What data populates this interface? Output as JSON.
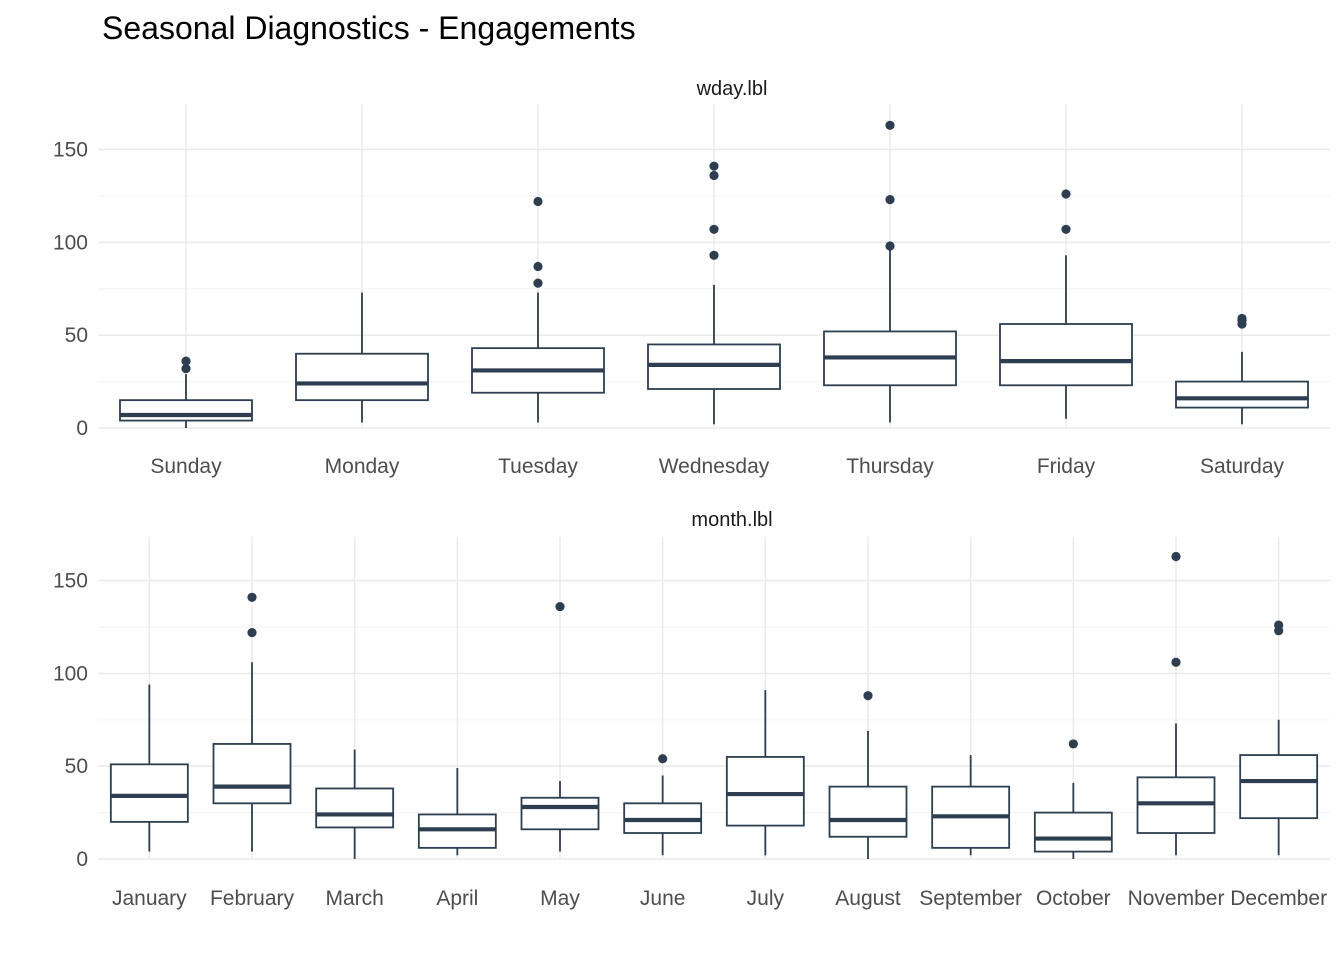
{
  "title": "Seasonal Diagnostics - Engagements",
  "colors": {
    "box": "#2c3e50",
    "grid_major": "#ebebeb",
    "grid_minor": "#f5f5f5",
    "tick_text": "#4d4d4d",
    "background": "#ffffff"
  },
  "chart_data": [
    {
      "type": "box",
      "panel": "wday.lbl",
      "ylim": [
        0,
        170
      ],
      "yticks": [
        0,
        50,
        100,
        150
      ],
      "categories": [
        "Sunday",
        "Monday",
        "Tuesday",
        "Wednesday",
        "Thursday",
        "Friday",
        "Saturday"
      ],
      "boxes": [
        {
          "whisker_low": 0,
          "q1": 4,
          "median": 7,
          "q3": 15,
          "whisker_high": 29,
          "outliers": [
            32,
            36
          ]
        },
        {
          "whisker_low": 3,
          "q1": 15,
          "median": 24,
          "q3": 40,
          "whisker_high": 73,
          "outliers": []
        },
        {
          "whisker_low": 3,
          "q1": 19,
          "median": 31,
          "q3": 43,
          "whisker_high": 73,
          "outliers": [
            78,
            87,
            122
          ]
        },
        {
          "whisker_low": 2,
          "q1": 21,
          "median": 34,
          "q3": 45,
          "whisker_high": 77,
          "outliers": [
            93,
            107,
            136,
            141
          ]
        },
        {
          "whisker_low": 3,
          "q1": 23,
          "median": 38,
          "q3": 52,
          "whisker_high": 96,
          "outliers": [
            98,
            123,
            163
          ]
        },
        {
          "whisker_low": 5,
          "q1": 23,
          "median": 36,
          "q3": 56,
          "whisker_high": 93,
          "outliers": [
            107,
            126
          ]
        },
        {
          "whisker_low": 2,
          "q1": 11,
          "median": 16,
          "q3": 25,
          "whisker_high": 41,
          "outliers": [
            56,
            58,
            59
          ]
        }
      ]
    },
    {
      "type": "box",
      "panel": "month.lbl",
      "ylim": [
        0,
        170
      ],
      "yticks": [
        0,
        50,
        100,
        150
      ],
      "categories": [
        "January",
        "February",
        "March",
        "April",
        "May",
        "June",
        "July",
        "August",
        "September",
        "October",
        "November",
        "December"
      ],
      "boxes": [
        {
          "whisker_low": 4,
          "q1": 20,
          "median": 34,
          "q3": 51,
          "whisker_high": 94,
          "outliers": []
        },
        {
          "whisker_low": 4,
          "q1": 30,
          "median": 39,
          "q3": 62,
          "whisker_high": 106,
          "outliers": [
            122,
            141
          ]
        },
        {
          "whisker_low": 0,
          "q1": 17,
          "median": 24,
          "q3": 38,
          "whisker_high": 59,
          "outliers": []
        },
        {
          "whisker_low": 2,
          "q1": 6,
          "median": 16,
          "q3": 24,
          "whisker_high": 49,
          "outliers": []
        },
        {
          "whisker_low": 4,
          "q1": 16,
          "median": 28,
          "q3": 33,
          "whisker_high": 42,
          "outliers": [
            136
          ]
        },
        {
          "whisker_low": 2,
          "q1": 14,
          "median": 21,
          "q3": 30,
          "whisker_high": 45,
          "outliers": [
            54
          ]
        },
        {
          "whisker_low": 2,
          "q1": 18,
          "median": 35,
          "q3": 55,
          "whisker_high": 91,
          "outliers": []
        },
        {
          "whisker_low": 0,
          "q1": 12,
          "median": 21,
          "q3": 39,
          "whisker_high": 69,
          "outliers": [
            88
          ]
        },
        {
          "whisker_low": 2,
          "q1": 6,
          "median": 23,
          "q3": 39,
          "whisker_high": 56,
          "outliers": []
        },
        {
          "whisker_low": 0,
          "q1": 4,
          "median": 11,
          "q3": 25,
          "whisker_high": 41,
          "outliers": [
            62
          ]
        },
        {
          "whisker_low": 2,
          "q1": 14,
          "median": 30,
          "q3": 44,
          "whisker_high": 73,
          "outliers": [
            106,
            163
          ]
        },
        {
          "whisker_low": 2,
          "q1": 22,
          "median": 42,
          "q3": 56,
          "whisker_high": 75,
          "outliers": [
            123,
            126
          ]
        }
      ]
    }
  ]
}
